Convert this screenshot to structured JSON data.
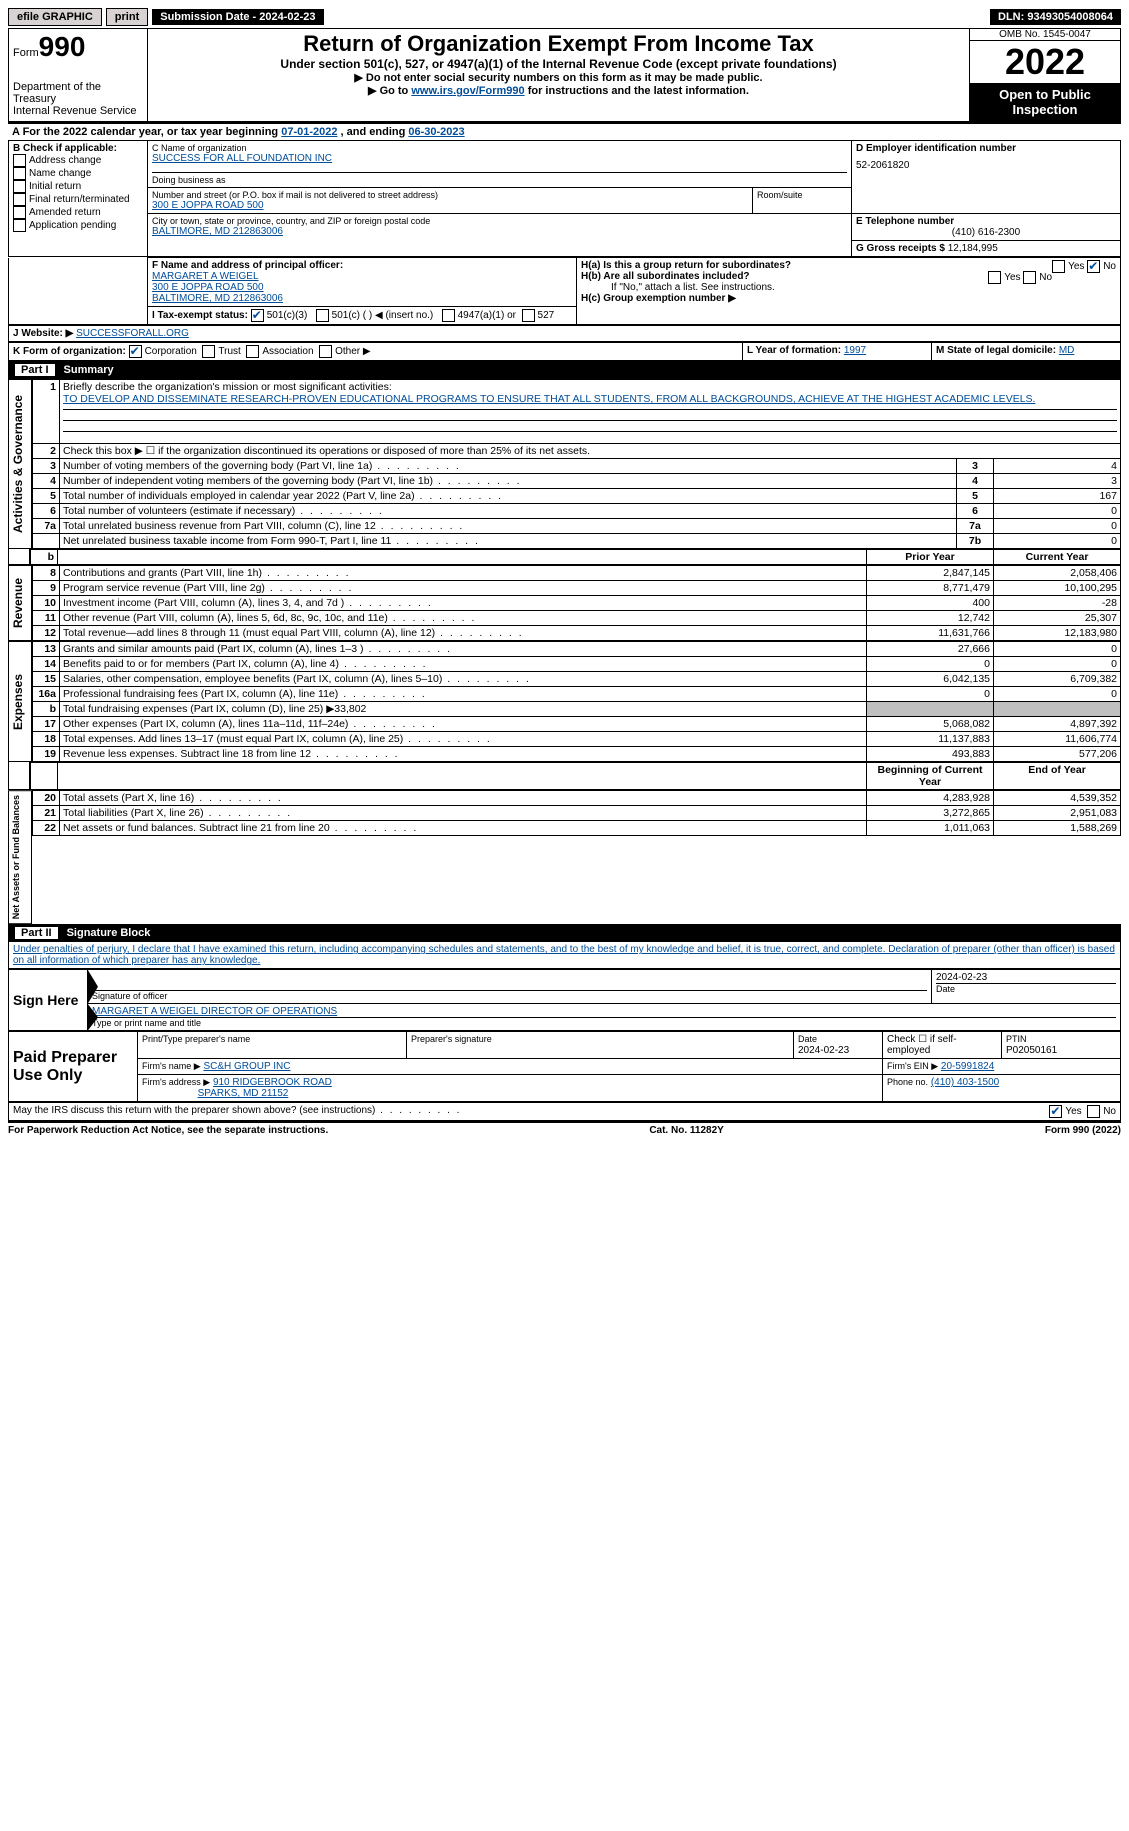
{
  "topbar": {
    "efile": "efile GRAPHIC",
    "print": "print",
    "submission": "Submission Date - 2024-02-23",
    "dln": "DLN: 93493054008064"
  },
  "header": {
    "form_word": "Form",
    "form_number": "990",
    "omb": "OMB No. 1545-0047",
    "title": "Return of Organization Exempt From Income Tax",
    "subtitle": "Under section 501(c), 527, or 4947(a)(1) of the Internal Revenue Code (except private foundations)",
    "line1": "▶ Do not enter social security numbers on this form as it may be made public.",
    "line2_pre": "▶ Go to ",
    "line2_link": "www.irs.gov/Form990",
    "line2_post": " for instructions and the latest information.",
    "year": "2022",
    "open_public": "Open to Public Inspection",
    "dept": "Department of the Treasury",
    "irs": "Internal Revenue Service"
  },
  "sectionA": {
    "text_pre": "A  For the 2022 calendar year, or tax year beginning ",
    "begin": "07-01-2022",
    "mid": "  , and ending ",
    "end": "06-30-2023"
  },
  "boxB": {
    "label": "B Check if applicable:",
    "items": [
      "Address change",
      "Name change",
      "Initial return",
      "Final return/terminated",
      "Amended return",
      "Application pending"
    ]
  },
  "boxC": {
    "name_label": "C Name of organization",
    "name": "SUCCESS FOR ALL FOUNDATION INC",
    "dba_label": "Doing business as",
    "street_label": "Number and street (or P.O. box if mail is not delivered to street address)",
    "room_label": "Room/suite",
    "street": "300 E JOPPA ROAD 500",
    "city_label": "City or town, state or province, country, and ZIP or foreign postal code",
    "city": "BALTIMORE, MD  212863006"
  },
  "boxD": {
    "label": "D Employer identification number",
    "value": "52-2061820"
  },
  "boxE": {
    "label": "E Telephone number",
    "value": "(410) 616-2300"
  },
  "boxG": {
    "label": "G Gross receipts $",
    "value": "12,184,995"
  },
  "boxF": {
    "label": "F Name and address of principal officer:",
    "l1": "MARGARET A WEIGEL",
    "l2": "300 E JOPPA ROAD 500",
    "l3": "BALTIMORE, MD  212863006"
  },
  "boxH": {
    "a": "H(a)  Is this a group return for subordinates?",
    "b": "H(b)  Are all subordinates included?",
    "b_note": "If \"No,\" attach a list. See instructions.",
    "c": "H(c)  Group exemption number ▶",
    "yes": "Yes",
    "no": "No"
  },
  "boxI": {
    "label": "I    Tax-exempt status:",
    "c3": "501(c)(3)",
    "c": "501(c) (  ) ◀ (insert no.)",
    "a1": "4947(a)(1) or",
    "s527": "527"
  },
  "boxJ": {
    "label": "J   Website: ▶",
    "value": "SUCCESSFORALL.ORG"
  },
  "boxK": {
    "label": "K Form of organization:",
    "opts": [
      "Corporation",
      "Trust",
      "Association",
      "Other ▶"
    ]
  },
  "boxL": {
    "label": "L Year of formation:",
    "value": "1997"
  },
  "boxM": {
    "label": "M State of legal domicile:",
    "value": "MD"
  },
  "part1": {
    "header_num": "Part I",
    "header_title": "Summary",
    "q1_label": "Briefly describe the organization's mission or most significant activities:",
    "q1_text": "TO DEVELOP AND DISSEMINATE RESEARCH-PROVEN EDUCATIONAL PROGRAMS TO ENSURE THAT ALL STUDENTS, FROM ALL BACKGROUNDS, ACHIEVE AT THE HIGHEST ACADEMIC LEVELS.",
    "q2": "Check this box ▶ ☐ if the organization discontinued its operations or disposed of more than 25% of its net assets.",
    "rows_ag": [
      {
        "n": "3",
        "d": "Number of voting members of the governing body (Part VI, line 1a)",
        "box": "3",
        "v": "4"
      },
      {
        "n": "4",
        "d": "Number of independent voting members of the governing body (Part VI, line 1b)",
        "box": "4",
        "v": "3"
      },
      {
        "n": "5",
        "d": "Total number of individuals employed in calendar year 2022 (Part V, line 2a)",
        "box": "5",
        "v": "167"
      },
      {
        "n": "6",
        "d": "Total number of volunteers (estimate if necessary)",
        "box": "6",
        "v": "0"
      },
      {
        "n": "7a",
        "d": "Total unrelated business revenue from Part VIII, column (C), line 12",
        "box": "7a",
        "v": "0"
      },
      {
        "n": "",
        "d": "Net unrelated business taxable income from Form 990-T, Part I, line 11",
        "box": "7b",
        "v": "0"
      }
    ],
    "col_headers": {
      "prior": "Prior Year",
      "current": "Current Year",
      "beg": "Beginning of Current Year",
      "eoy": "End of Year"
    },
    "revenue": [
      {
        "n": "8",
        "d": "Contributions and grants (Part VIII, line 1h)",
        "p": "2,847,145",
        "c": "2,058,406"
      },
      {
        "n": "9",
        "d": "Program service revenue (Part VIII, line 2g)",
        "p": "8,771,479",
        "c": "10,100,295"
      },
      {
        "n": "10",
        "d": "Investment income (Part VIII, column (A), lines 3, 4, and 7d )",
        "p": "400",
        "c": "-28"
      },
      {
        "n": "11",
        "d": "Other revenue (Part VIII, column (A), lines 5, 6d, 8c, 9c, 10c, and 11e)",
        "p": "12,742",
        "c": "25,307"
      },
      {
        "n": "12",
        "d": "Total revenue—add lines 8 through 11 (must equal Part VIII, column (A), line 12)",
        "p": "11,631,766",
        "c": "12,183,980"
      }
    ],
    "expenses": [
      {
        "n": "13",
        "d": "Grants and similar amounts paid (Part IX, column (A), lines 1–3 )",
        "p": "27,666",
        "c": "0"
      },
      {
        "n": "14",
        "d": "Benefits paid to or for members (Part IX, column (A), line 4)",
        "p": "0",
        "c": "0"
      },
      {
        "n": "15",
        "d": "Salaries, other compensation, employee benefits (Part IX, column (A), lines 5–10)",
        "p": "6,042,135",
        "c": "6,709,382"
      },
      {
        "n": "16a",
        "d": "Professional fundraising fees (Part IX, column (A), line 11e)",
        "p": "0",
        "c": "0"
      },
      {
        "n": "b",
        "d": "Total fundraising expenses (Part IX, column (D), line 25) ▶33,802",
        "p": "SHADE",
        "c": "SHADE"
      },
      {
        "n": "17",
        "d": "Other expenses (Part IX, column (A), lines 11a–11d, 11f–24e)",
        "p": "5,068,082",
        "c": "4,897,392"
      },
      {
        "n": "18",
        "d": "Total expenses. Add lines 13–17 (must equal Part IX, column (A), line 25)",
        "p": "11,137,883",
        "c": "11,606,774"
      },
      {
        "n": "19",
        "d": "Revenue less expenses. Subtract line 18 from line 12",
        "p": "493,883",
        "c": "577,206"
      }
    ],
    "net": [
      {
        "n": "20",
        "d": "Total assets (Part X, line 16)",
        "p": "4,283,928",
        "c": "4,539,352"
      },
      {
        "n": "21",
        "d": "Total liabilities (Part X, line 26)",
        "p": "3,272,865",
        "c": "2,951,083"
      },
      {
        "n": "22",
        "d": "Net assets or fund balances. Subtract line 21 from line 20",
        "p": "1,011,063",
        "c": "1,588,269"
      }
    ],
    "vert": {
      "ag": "Activities & Governance",
      "rev": "Revenue",
      "exp": "Expenses",
      "net": "Net Assets or Fund Balances"
    }
  },
  "part2": {
    "header_num": "Part II",
    "header_title": "Signature Block",
    "decl": "Under penalties of perjury, I declare that I have examined this return, including accompanying schedules and statements, and to the best of my knowledge and belief, it is true, correct, and complete. Declaration of preparer (other than officer) is based on all information of which preparer has any knowledge.",
    "sign_here": "Sign Here",
    "sig_officer_label": "Signature of officer",
    "date_val": "2024-02-23",
    "date_label": "Date",
    "name_val": "MARGARET A WEIGEL  DIRECTOR OF OPERATIONS",
    "name_label": "Type or print name and title",
    "paid": "Paid Preparer Use Only",
    "pt_name_label": "Print/Type preparer's name",
    "pt_sig_label": "Preparer's signature",
    "pt_date_label": "Date",
    "pt_date": "2024-02-23",
    "check_label": "Check ☐ if self-employed",
    "ptin_label": "PTIN",
    "ptin": "P02050161",
    "firm_name_label": "Firm's name    ▶",
    "firm_name": "SC&H GROUP INC",
    "firm_ein_label": "Firm's EIN ▶",
    "firm_ein": "20-5991824",
    "firm_addr_label": "Firm's address ▶",
    "firm_addr1": "910 RIDGEBROOK ROAD",
    "firm_addr2": "SPARKS, MD  21152",
    "phone_label": "Phone no.",
    "phone": "(410) 403-1500",
    "discuss": "May the IRS discuss this return with the preparer shown above? (see instructions)",
    "yes": "Yes",
    "no": "No"
  },
  "footer": {
    "pra": "For Paperwork Reduction Act Notice, see the separate instructions.",
    "cat": "Cat. No. 11282Y",
    "form": "Form 990 (2022)"
  }
}
